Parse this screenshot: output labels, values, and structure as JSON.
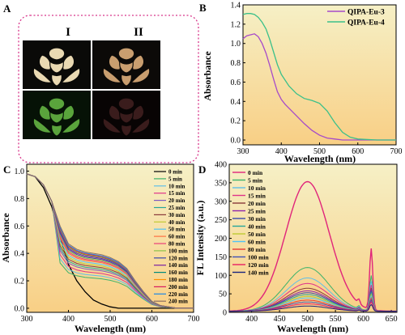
{
  "figure": {
    "colors": {
      "panel_bg_top": "#f6f0c6",
      "panel_bg_bottom": "#f8cf85",
      "frame_border": "#d8358a",
      "axis": "#000000"
    },
    "panel_labels": {
      "a": "A",
      "b": "B",
      "c": "C",
      "d": "D"
    },
    "panel_a": {
      "col_labels": [
        "I",
        "II"
      ],
      "tiles": [
        {
          "name": "rose-image-I-top",
          "fill": "#e9d9b2",
          "bg": "#0a0a08"
        },
        {
          "name": "rose-image-II-top",
          "fill": "#c99e6f",
          "bg": "#0c0a08"
        },
        {
          "name": "rose-image-I-bottom",
          "fill": "#5aa43c",
          "bg": "#061206"
        },
        {
          "name": "rose-image-II-bottom",
          "fill": "#3a1c1c",
          "bg": "#080404"
        }
      ]
    }
  },
  "chart_data": [
    {
      "panel": "B",
      "type": "line",
      "xlabel": "Wavelength (nm)",
      "ylabel": "Absorbance",
      "xlim": [
        300,
        700
      ],
      "ylim": [
        -0.05,
        1.4
      ],
      "xticks": [
        "300",
        "400",
        "500",
        "600",
        "700"
      ],
      "yticks": [
        "0.0",
        "0.2",
        "0.4",
        "0.6",
        "0.8",
        "1.0",
        "1.2",
        "1.4"
      ],
      "legend_position": "top-right",
      "series": [
        {
          "name": "QIPA-Eu-3",
          "color": "#a64ac9",
          "x": [
            300,
            310,
            320,
            330,
            340,
            350,
            360,
            370,
            380,
            390,
            400,
            410,
            420,
            440,
            460,
            480,
            500,
            520,
            540,
            560,
            600,
            650,
            700
          ],
          "y": [
            1.05,
            1.08,
            1.09,
            1.1,
            1.07,
            1.0,
            0.9,
            0.77,
            0.63,
            0.5,
            0.42,
            0.37,
            0.33,
            0.25,
            0.17,
            0.1,
            0.05,
            0.02,
            0.01,
            0.0,
            0.0,
            0.0,
            0.0
          ]
        },
        {
          "name": "QIPA-Eu-4",
          "color": "#3cc08a",
          "x": [
            300,
            310,
            320,
            330,
            340,
            350,
            360,
            370,
            380,
            390,
            400,
            420,
            440,
            460,
            480,
            500,
            520,
            540,
            560,
            580,
            600,
            650,
            700
          ],
          "y": [
            1.3,
            1.31,
            1.31,
            1.3,
            1.27,
            1.22,
            1.15,
            1.04,
            0.91,
            0.78,
            0.68,
            0.56,
            0.48,
            0.43,
            0.41,
            0.38,
            0.3,
            0.18,
            0.08,
            0.03,
            0.01,
            0.0,
            0.0
          ]
        }
      ]
    },
    {
      "panel": "C",
      "type": "line",
      "xlabel": "Wavelength (nm)",
      "ylabel": "Absorbance",
      "xlim": [
        300,
        700
      ],
      "ylim": [
        -0.03,
        1.05
      ],
      "xticks": [
        "300",
        "400",
        "500",
        "600",
        "700"
      ],
      "yticks": [
        "0.0",
        "0.2",
        "0.4",
        "0.6",
        "0.8",
        "1.0"
      ],
      "legend_position": "top-right",
      "x": [
        300,
        320,
        340,
        360,
        380,
        400,
        420,
        440,
        460,
        480,
        500,
        520,
        540,
        560,
        580,
        600,
        620,
        640,
        660,
        680,
        700
      ],
      "base_curve": [
        0.98,
        0.96,
        0.9,
        0.78,
        0.6,
        0.47,
        0.43,
        0.41,
        0.4,
        0.39,
        0.37,
        0.34,
        0.29,
        0.2,
        0.12,
        0.05,
        0.02,
        0.01,
        0.0,
        0.0,
        0.0
      ],
      "series": [
        {
          "name": "0 min",
          "color": "#000000",
          "y": [
            0.98,
            0.96,
            0.88,
            0.74,
            0.52,
            0.32,
            0.2,
            0.12,
            0.06,
            0.03,
            0.01,
            0.0,
            0.0,
            0.0,
            0.0,
            0.0,
            0.0,
            0.0,
            0.0,
            0.0,
            0.0
          ]
        },
        {
          "name": "5 min",
          "color": "#3cb36b",
          "scale": 0.55
        },
        {
          "name": "10 min",
          "color": "#5fbfe8",
          "scale": 0.6
        },
        {
          "name": "15 min",
          "color": "#e0348a",
          "scale": 0.65
        },
        {
          "name": "20 min",
          "color": "#7e57c2",
          "scale": 0.7
        },
        {
          "name": "25 min",
          "color": "#26a69a",
          "scale": 0.73
        },
        {
          "name": "30 min",
          "color": "#8a3a3a",
          "scale": 0.76
        },
        {
          "name": "40 min",
          "color": "#c0ca33",
          "scale": 0.79
        },
        {
          "name": "50 min",
          "color": "#4fc3f7",
          "scale": 0.82
        },
        {
          "name": "60 min",
          "color": "#ff7043",
          "scale": 0.85
        },
        {
          "name": "80 min",
          "color": "#ec407a",
          "scale": 0.87
        },
        {
          "name": "100 min",
          "color": "#8bc34a",
          "scale": 0.89
        },
        {
          "name": "120 min",
          "color": "#3949ab",
          "scale": 0.91
        },
        {
          "name": "140 min",
          "color": "#7b1fa2",
          "scale": 0.93
        },
        {
          "name": "160 min",
          "color": "#00897b",
          "scale": 0.95
        },
        {
          "name": "180 min",
          "color": "#ff8f00",
          "scale": 0.96
        },
        {
          "name": "200 min",
          "color": "#d81b60",
          "scale": 0.97
        },
        {
          "name": "220 min",
          "color": "#1e88e5",
          "scale": 0.98
        },
        {
          "name": "240 min",
          "color": "#8d6e63",
          "scale": 1.0
        }
      ]
    },
    {
      "panel": "D",
      "type": "line",
      "xlabel": "Wavelength (nm)",
      "ylabel": "FL Intensity (a.u.)",
      "xlim": [
        360,
        660
      ],
      "ylim": [
        0,
        400
      ],
      "xticks": [
        "400",
        "450",
        "500",
        "550",
        "600",
        "650"
      ],
      "yticks": [
        "0",
        "50",
        "100",
        "150",
        "200",
        "250",
        "300",
        "350",
        "400"
      ],
      "legend_position": "top-left",
      "broad_band": {
        "center": 500,
        "width": 55
      },
      "eu_peaks": [
        {
          "x": 592,
          "width": 3
        },
        {
          "x": 614,
          "width": 4
        }
      ],
      "series": [
        {
          "name": "0 min",
          "color": "#e0247a",
          "broad": 350,
          "peak592": 12,
          "peak614": 165
        },
        {
          "name": "5 min",
          "color": "#3cb36b",
          "broad": 118,
          "peak592": 8,
          "peak614": 95
        },
        {
          "name": "10 min",
          "color": "#5fbfe8",
          "broad": 90,
          "peak592": 7,
          "peak614": 80
        },
        {
          "name": "15 min",
          "color": "#e0348a",
          "broad": 75,
          "peak592": 6,
          "peak614": 70
        },
        {
          "name": "20 min",
          "color": "#8a3a3a",
          "broad": 62,
          "peak592": 5,
          "peak614": 62
        },
        {
          "name": "25 min",
          "color": "#8e24aa",
          "broad": 55,
          "peak592": 5,
          "peak614": 58
        },
        {
          "name": "30 min",
          "color": "#3949ab",
          "broad": 50,
          "peak592": 5,
          "peak614": 55
        },
        {
          "name": "40 min",
          "color": "#26a69a",
          "broad": 45,
          "peak592": 4,
          "peak614": 50
        },
        {
          "name": "50 min",
          "color": "#c0ca33",
          "broad": 40,
          "peak592": 4,
          "peak614": 45
        },
        {
          "name": "60 min",
          "color": "#4fc3f7",
          "broad": 36,
          "peak592": 4,
          "peak614": 40
        },
        {
          "name": "80 min",
          "color": "#e53935",
          "broad": 30,
          "peak592": 3,
          "peak614": 35
        },
        {
          "name": "100 min",
          "color": "#3f51b5",
          "broad": 25,
          "peak592": 3,
          "peak614": 30
        },
        {
          "name": "120 min",
          "color": "#e91e63",
          "broad": 20,
          "peak592": 3,
          "peak614": 25
        },
        {
          "name": "140 min",
          "color": "#1a237e",
          "broad": 14,
          "peak592": 2,
          "peak614": 18
        }
      ]
    }
  ]
}
